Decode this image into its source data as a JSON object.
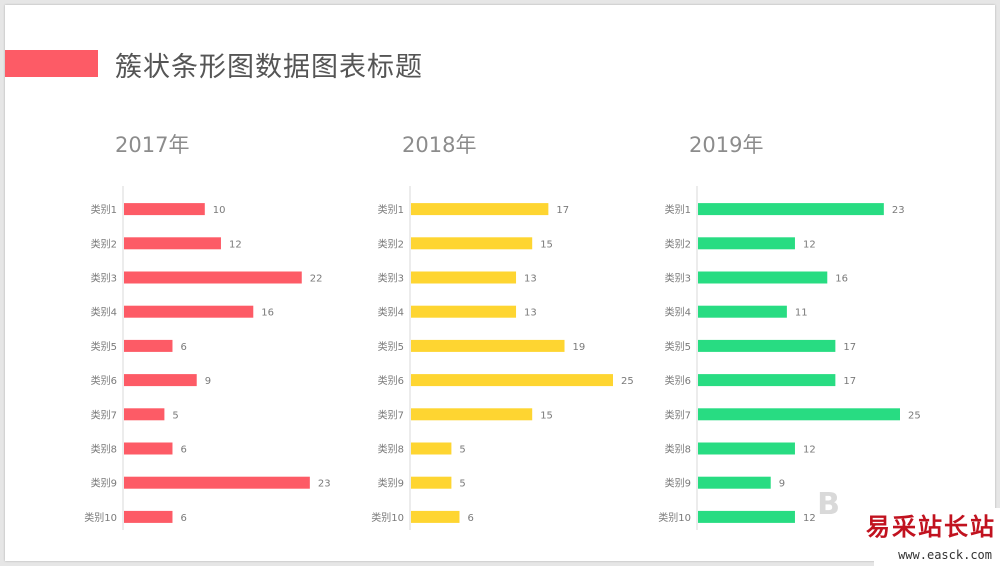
{
  "page": {
    "title": "簇状条形图数据图表标题"
  },
  "chart_data": [
    {
      "type": "bar",
      "orientation": "horizontal",
      "title": "2017年",
      "categories": [
        "类别1",
        "类别2",
        "类别3",
        "类别4",
        "类别5",
        "类别6",
        "类别7",
        "类别8",
        "类别9",
        "类别10"
      ],
      "values": [
        10,
        12,
        22,
        16,
        6,
        9,
        5,
        6,
        23,
        6
      ],
      "color": "#fd5b66",
      "xlim": [
        0,
        25
      ],
      "grid": false,
      "data_labels": true
    },
    {
      "type": "bar",
      "orientation": "horizontal",
      "title": "2018年",
      "categories": [
        "类别1",
        "类别2",
        "类别3",
        "类别4",
        "类别5",
        "类别6",
        "类别7",
        "类别8",
        "类别9",
        "类别10"
      ],
      "values": [
        17,
        15,
        13,
        13,
        19,
        25,
        15,
        5,
        5,
        6
      ],
      "color": "#fed531",
      "xlim": [
        0,
        25
      ],
      "grid": false,
      "data_labels": true
    },
    {
      "type": "bar",
      "orientation": "horizontal",
      "title": "2019年",
      "categories": [
        "类别1",
        "类别2",
        "类别3",
        "类别4",
        "类别5",
        "类别6",
        "类别7",
        "类别8",
        "类别9",
        "类别10"
      ],
      "values": [
        23,
        12,
        16,
        11,
        17,
        17,
        25,
        12,
        9,
        12
      ],
      "color": "#28dc82",
      "xlim": [
        0,
        25
      ],
      "grid": false,
      "data_labels": true
    }
  ],
  "watermark": {
    "text": "易采站长站",
    "url": "www.easck.com",
    "logo_letter": "B"
  }
}
